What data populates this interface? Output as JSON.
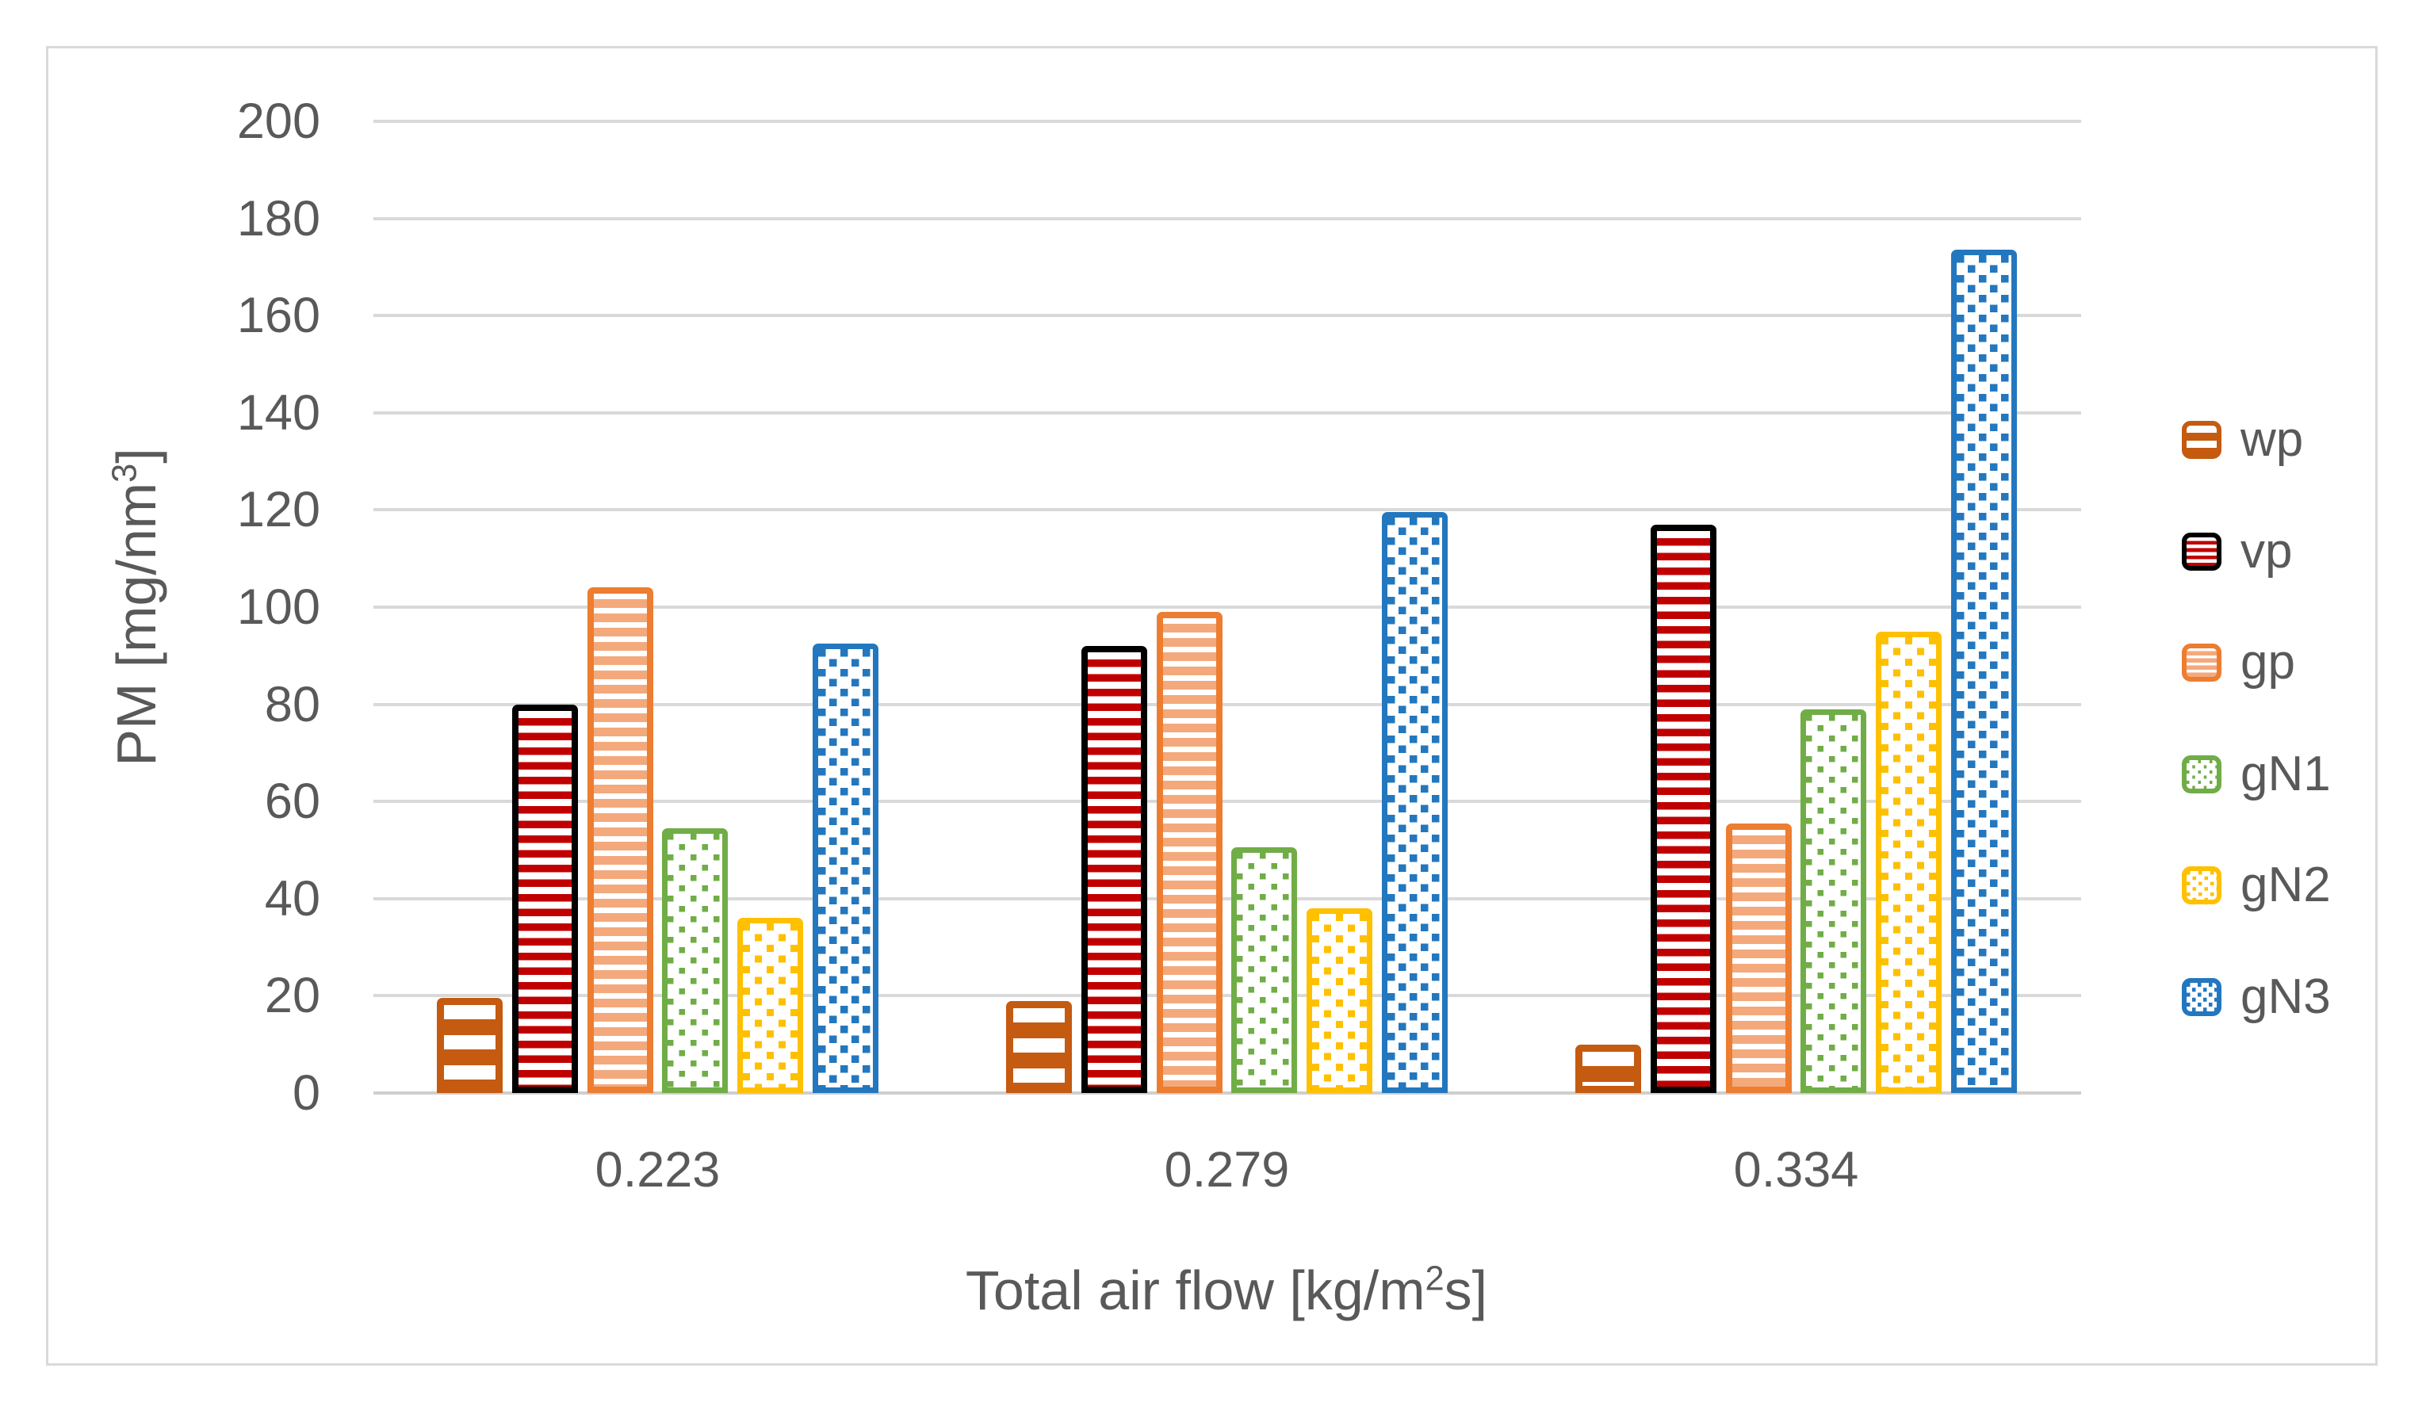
{
  "chart_data": {
    "type": "bar",
    "title": "",
    "categories": [
      "0.223",
      "0.279",
      "0.334"
    ],
    "series": [
      {
        "name": "wp",
        "values": [
          19.5,
          19,
          10
        ],
        "color": "#C55A11",
        "border": "#C55A11",
        "pattern": "hstripe-thick"
      },
      {
        "name": "vp",
        "values": [
          80,
          92,
          117
        ],
        "color": "#C00000",
        "border": "#000000",
        "pattern": "hstripe"
      },
      {
        "name": "gp",
        "values": [
          104,
          99,
          55.5
        ],
        "color": "#F4A97C",
        "border": "#ED7D31",
        "pattern": "hstripe"
      },
      {
        "name": "gN1",
        "values": [
          54.5,
          50.5,
          79
        ],
        "color": "#70AD47",
        "border": "#70AD47",
        "pattern": "dots"
      },
      {
        "name": "gN2",
        "values": [
          36,
          38,
          95
        ],
        "color": "#FFC000",
        "border": "#FFC000",
        "pattern": "dots"
      },
      {
        "name": "gN3",
        "values": [
          92.5,
          119.5,
          173.5
        ],
        "color": "#2377BE",
        "border": "#2377BE",
        "pattern": "dots"
      }
    ],
    "ylabel": {
      "pre": "PM [mg/nm",
      "sup": "3",
      "post": "]"
    },
    "xlabel": {
      "pre": "Total air flow [kg/m",
      "sup": "2",
      "post": "s]"
    },
    "ylim": [
      0,
      200
    ],
    "ytick_step": 20,
    "yticks": [
      "0",
      "20",
      "40",
      "60",
      "80",
      "100",
      "120",
      "140",
      "160",
      "180",
      "200"
    ],
    "grid": "horizontal",
    "legend_position": "right",
    "legend_labels": [
      "wp",
      "vp",
      "gp",
      "gN1",
      "gN2",
      "gN3"
    ]
  },
  "colors": {
    "text": "#595959",
    "gridline": "#D9D9D9",
    "axis_line": "#D0CECE",
    "frame_border": "#D9D9D9",
    "background": "#FFFFFF"
  }
}
